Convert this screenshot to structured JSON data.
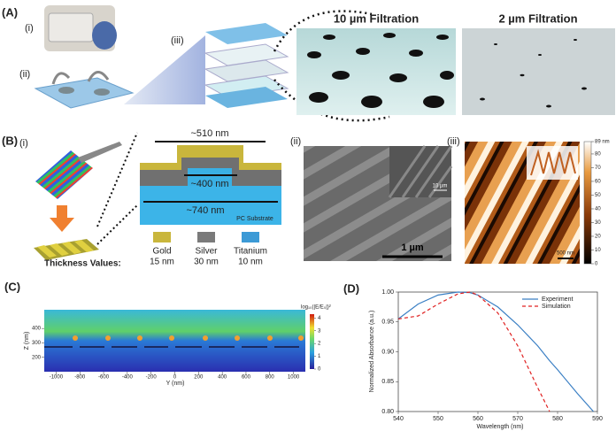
{
  "panels": {
    "a": {
      "label": "(A)",
      "i": "(i)",
      "ii": "(ii)",
      "iii": "(iii)",
      "filter_10": "10 µm Filtration",
      "filter_2": "2 µm Filtration"
    },
    "b": {
      "label": "(B)",
      "i": "(i)",
      "ii": "(ii)",
      "iii": "(iii)",
      "width_top": "~510 nm",
      "width_mid": "~400 nm",
      "width_bottom": "~740 nm",
      "substrate": "PC Substrate",
      "thickness_title": "Thickness Values:",
      "layers": [
        {
          "name": "Gold",
          "thickness": "15 nm",
          "color": "#c9b63c"
        },
        {
          "name": "Silver",
          "thickness": "30 nm",
          "color": "#7a7a7a"
        },
        {
          "name": "Titanium",
          "thickness": "10 nm",
          "color": "#3c9ad6"
        }
      ],
      "sem_scale": "1 µm",
      "sem_inset_scale": "10 µm",
      "afm_scale": "500 nm",
      "afm_colorbar": {
        "lim": [
          0,
          89
        ],
        "ticks": [
          {
            "value": 89,
            "label": "89 nm"
          },
          80,
          70,
          60,
          50,
          40,
          30,
          20,
          10,
          0
        ]
      }
    },
    "c": {
      "label": "(C)",
      "xlabel": "Y (nm)",
      "ylabel": "Z (nm)",
      "colorbar_label": "log₁₀(|E/E₀|)²",
      "xlim": [
        -1100,
        1100
      ],
      "xticks": [
        -1000,
        -800,
        -600,
        -400,
        -200,
        0,
        200,
        400,
        600,
        800,
        1000
      ],
      "ylim": [
        100,
        530
      ],
      "yticks": [
        200,
        300,
        400
      ],
      "clim": [
        0,
        4.3
      ],
      "cticks": [
        0,
        1,
        2,
        3,
        4
      ]
    },
    "d": {
      "label": "(D)"
    }
  },
  "chart_data": {
    "type": "line",
    "xlabel": "Wavelength (nm)",
    "ylabel": "Normalized Absorbance (a.u.)",
    "x": [
      540,
      545,
      550,
      555,
      558,
      560,
      565,
      570,
      575,
      578,
      580,
      585,
      589
    ],
    "series": [
      {
        "name": "Experiment",
        "color": "#3a7fc4",
        "dash": "none",
        "values": [
          0.955,
          0.98,
          0.995,
          1.0,
          0.999,
          0.995,
          0.975,
          0.945,
          0.91,
          0.885,
          0.87,
          0.83,
          0.8
        ]
      },
      {
        "name": "Simulation",
        "color": "#e02020",
        "dash": "4 3",
        "values": [
          0.955,
          0.96,
          0.98,
          0.997,
          1.0,
          0.995,
          0.965,
          0.91,
          0.84,
          0.8,
          null,
          null,
          null
        ]
      }
    ],
    "xlim": [
      540,
      590
    ],
    "xticks": [
      540,
      550,
      560,
      570,
      580,
      590
    ],
    "ylim": [
      0.8,
      1.0
    ],
    "yticks": [
      {
        "value": 0.8,
        "label": "0.80"
      },
      {
        "value": 0.85,
        "label": "0.85"
      },
      {
        "value": 0.9,
        "label": "0.90"
      },
      {
        "value": 0.95,
        "label": "0.95"
      },
      {
        "value": 1.0,
        "label": "1.00"
      }
    ]
  }
}
